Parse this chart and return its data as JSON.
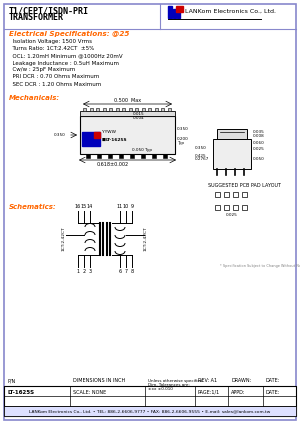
{
  "title_line1": "T1/CEPT/ISDN-PRI",
  "title_line2": "TRANSFORMER",
  "company": "LANKom Electronics Co., Ltd.",
  "bg_color": "#ffffff",
  "border_color": "#8888cc",
  "header_color": "#ff6600",
  "elec_header_color": "#ff6600",
  "elec_specs_title": "Electrical Specifications: @25",
  "elec_specs": [
    "  Isolation Voltage: 1500 Vrms",
    "  Turns Ratio: 1CT:2.42CT  ±5%",
    "  OCL: 1.20mH Minimum @1000Hz 20mV",
    "  Leakage Inductance : 0.5uH Maximum",
    "  Cw/w : 25pF Maximum",
    "  PRI DCR : 0.70 Ohms Maximum",
    "  SEC DCR : 1.20 Ohms Maximum"
  ],
  "mech_title": "Mechanicals:",
  "schem_title": "Schematics:",
  "pn": "LT-1625S",
  "dim_label": "DIMENSIONS IN INCH",
  "rev": "REV: A1",
  "drawn": "DRAWN:",
  "date_top": "DATE:",
  "page": "PAGE:1/1",
  "appd": "APPD:",
  "date_bot": "DATE:",
  "scale": "SCALE: NONE",
  "footer": "LANKom Electronics Co., Ltd. • TEL: 886-2-6606-9777 • FAX: 886-2-6606-9555 • E-mail: sales@lankom.com.tw",
  "footer_bg": "#dde0ff",
  "accent_color": "#cc0000",
  "logo_blue": "#0000bb",
  "small_note": "* Specification Subject to Change Without Notice"
}
